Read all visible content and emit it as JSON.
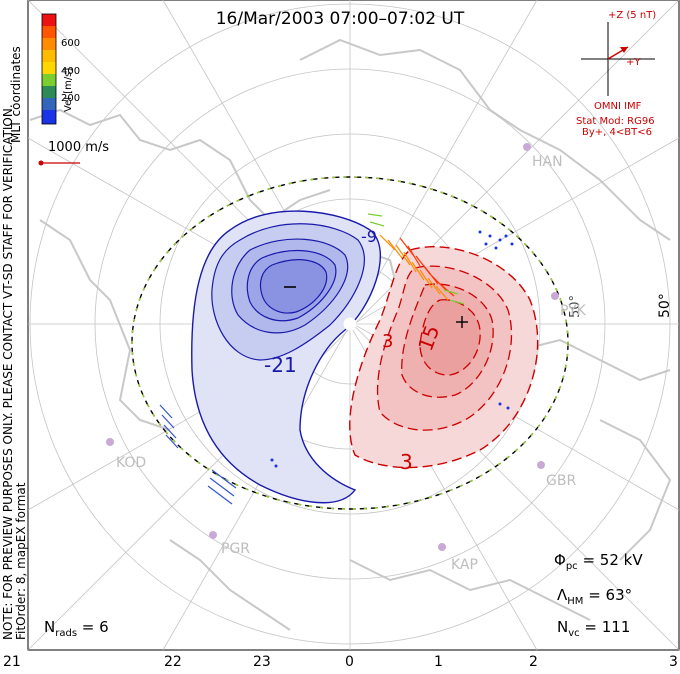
{
  "title": "16/Mar/2003 07:00–07:02 UT",
  "coordinates_label": "MLT coordinates",
  "colorbar": {
    "label": "Vel [m/s]",
    "ticks": [
      "600",
      "400",
      "200"
    ],
    "colors": [
      "#1a33e6",
      "#3355cc",
      "#2e8b57",
      "#7ccd2e",
      "#ffd700",
      "#ffa500",
      "#ff6600",
      "#ff2200",
      "#cc0000"
    ]
  },
  "scale_vector": "1000 m/s",
  "imf": {
    "plus_z": "+Z (5 nT)",
    "plus_y": "+Y",
    "source": "OMNI IMF",
    "model": "Stat Mod: RG96",
    "condition": "By+, 4<BT<6"
  },
  "notice": "NOTE: FOR PREVIEW PURPOSES ONLY. PLEASE CONTACT VT-SD STAFF FOR VERIFICATION.",
  "fit_order": "FitOrder: 8, mapEX format",
  "latitude_labels": [
    "50°",
    "50°"
  ],
  "sites": [
    "HAN",
    "PYK",
    "KOD",
    "GBR",
    "PGR",
    "KAP"
  ],
  "contour_labels": [
    "-9",
    "-21",
    "3",
    "15",
    "3"
  ],
  "stats": {
    "phi_pc": "Φ",
    "phi_sub": "pc",
    "phi_val": " = 52 kV",
    "lam": "Λ",
    "lam_sub": "HM",
    "lam_val": " = 63°",
    "nvc": "N",
    "nvc_sub": "vc",
    "nvc_val": " = 111",
    "nrads": "N",
    "nrads_sub": "rads",
    "nrads_val": " = 6"
  },
  "mlt_axis": [
    "21",
    "22",
    "23",
    "0",
    "1",
    "2",
    "3"
  ],
  "potential_colors": {
    "negative": "#4444dd",
    "positive": "#dd2222"
  }
}
